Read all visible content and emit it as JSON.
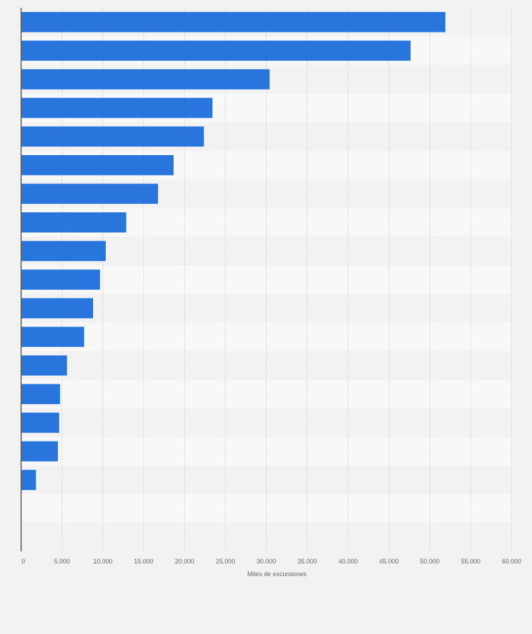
{
  "chart_data": {
    "type": "bar",
    "orientation": "horizontal",
    "title": "",
    "xlabel": "Miles de excursiones",
    "ylabel": "",
    "xlim": [
      0,
      60000
    ],
    "ticks": [
      {
        "value": 0,
        "label": "0"
      },
      {
        "value": 5000,
        "label": "5.000"
      },
      {
        "value": 10000,
        "label": "10.000"
      },
      {
        "value": 15000,
        "label": "15.000"
      },
      {
        "value": 20000,
        "label": "20.000"
      },
      {
        "value": 25000,
        "label": "25.000"
      },
      {
        "value": 30000,
        "label": "30.000"
      },
      {
        "value": 35000,
        "label": "35.000"
      },
      {
        "value": 40000,
        "label": "40.000"
      },
      {
        "value": 45000,
        "label": "45.000"
      },
      {
        "value": 50000,
        "label": "50.000"
      },
      {
        "value": 55000,
        "label": "55.000"
      },
      {
        "value": 60000,
        "label": "60.000"
      }
    ],
    "categories": [
      "",
      "",
      "",
      "",
      "",
      "",
      "",
      "",
      "",
      "",
      "",
      "",
      "",
      "",
      "",
      "",
      "",
      "",
      ""
    ],
    "values": [
      51900,
      47650,
      30400,
      23400,
      22350,
      18650,
      16750,
      12850,
      10350,
      9650,
      8800,
      7700,
      5600,
      4750,
      4650,
      4500,
      1800,
      null,
      null
    ],
    "grid": true,
    "bar_color": "#2876dd",
    "band_colors": [
      "#f2f2f2",
      "#f8f8f8"
    ]
  }
}
